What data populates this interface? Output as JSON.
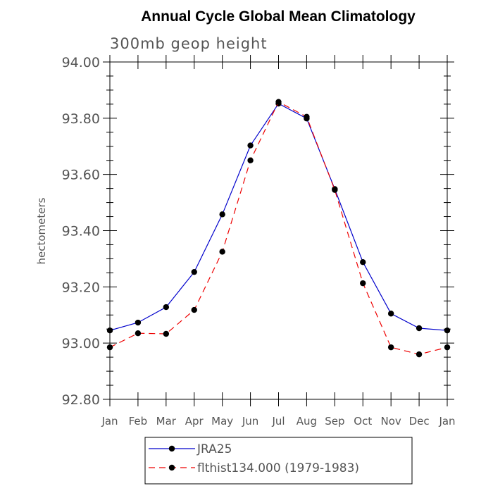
{
  "chart_data": {
    "type": "line",
    "title": "Annual Cycle Global Mean Climatology",
    "subtitle": "300mb geop height",
    "xlabel": "",
    "ylabel": "hectometers",
    "categories": [
      "Jan",
      "Feb",
      "Mar",
      "Apr",
      "May",
      "Jun",
      "Jul",
      "Aug",
      "Sep",
      "Oct",
      "Nov",
      "Dec",
      "Jan"
    ],
    "ylim": [
      92.8,
      94.0
    ],
    "yticks": [
      "92.80",
      "93.00",
      "93.20",
      "93.40",
      "93.60",
      "93.80",
      "94.00"
    ],
    "grid": false,
    "legend_position": "bottom",
    "series": [
      {
        "name": "JRA25",
        "color": "#0000cc",
        "dash": "solid",
        "values": [
          93.045,
          93.073,
          93.128,
          93.253,
          93.458,
          93.703,
          93.852,
          93.799,
          93.548,
          93.288,
          93.105,
          93.053,
          93.045
        ]
      },
      {
        "name": "flthist134.000 (1979-1983)",
        "color": "#ee0000",
        "dash": "dashed",
        "values": [
          92.985,
          93.035,
          93.033,
          93.118,
          93.325,
          93.65,
          93.858,
          93.805,
          93.545,
          93.213,
          92.985,
          92.96,
          92.985
        ]
      }
    ]
  }
}
